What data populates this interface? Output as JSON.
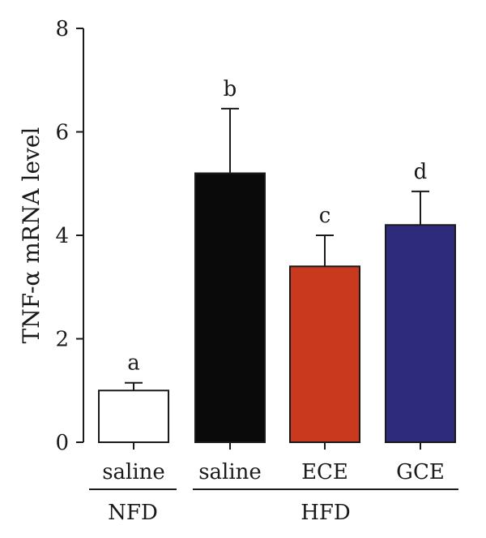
{
  "chart_data": {
    "type": "bar",
    "ylabel": "TNF-α mRNA level",
    "xlabel": "",
    "title": "",
    "ylim": [
      0,
      8
    ],
    "yticks": [
      0,
      2,
      4,
      6,
      8
    ],
    "grid": false,
    "categories": [
      "saline",
      "saline",
      "ECE",
      "GCE"
    ],
    "groups": [
      {
        "label": "NFD",
        "categories": [
          0
        ]
      },
      {
        "label": "HFD",
        "categories": [
          1,
          2,
          3
        ]
      }
    ],
    "values": [
      1.0,
      5.2,
      3.4,
      4.2
    ],
    "errors": [
      0.15,
      1.25,
      0.6,
      0.65
    ],
    "significance": [
      "a",
      "b",
      "c",
      "d"
    ],
    "colors": [
      "#ffffff",
      "#0a0a0a",
      "#c9391d",
      "#2e2a7c"
    ]
  }
}
